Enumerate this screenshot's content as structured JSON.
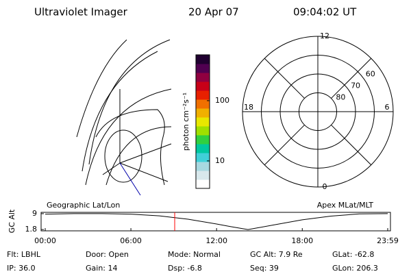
{
  "header": {
    "title": "Ultraviolet Imager",
    "date": "20 Apr 07",
    "time": "09:04:02 UT"
  },
  "chart_data": [
    {
      "type": "colorbar",
      "label": "photon cm⁻²s⁻¹",
      "log_scale": true,
      "ylim": [
        3.5,
        577
      ],
      "yticks": [
        10,
        100
      ],
      "colors": [
        "#ffffff",
        "#d8e8ec",
        "#a8d8e0",
        "#40d0d8",
        "#00c8a0",
        "#30d040",
        "#a0e000",
        "#e8e800",
        "#f0b000",
        "#f07000",
        "#e82000",
        "#c80018",
        "#900040",
        "#500050",
        "#200030"
      ]
    },
    {
      "type": "polar",
      "rlim": [
        50,
        90
      ],
      "rticks": [
        60,
        70,
        80
      ],
      "thetaticks": [
        0,
        6,
        12,
        18
      ]
    },
    {
      "type": "line",
      "ylabel": "GC Alt",
      "left_label": "Geographic Lat/Lon",
      "right_label": "Apex MLat/MLT",
      "xlim": [
        0,
        23.983
      ],
      "ylim": [
        1.2,
        9.6
      ],
      "yticks": [
        1.8,
        9.0
      ],
      "xticks": [
        {
          "value": 0,
          "label": "00:00"
        },
        {
          "value": 6,
          "label": "06:00"
        },
        {
          "value": 12,
          "label": "12:00"
        },
        {
          "value": 18,
          "label": "18:00"
        },
        {
          "value": 23.983,
          "label": "23:59"
        }
      ],
      "x": [
        0,
        2,
        4,
        6,
        8,
        10,
        12,
        13,
        14.2,
        15,
        16,
        18,
        20,
        22,
        23.983
      ],
      "series": [
        {
          "color": "#000000",
          "values": [
            8.8,
            9.0,
            9.0,
            8.8,
            8.0,
            6.5,
            4.3,
            3.1,
            1.8,
            2.7,
            3.9,
            6.2,
            7.9,
            8.9,
            9.0
          ]
        }
      ],
      "current_time": 9.067,
      "current_color": "#ff0000"
    }
  ],
  "info": {
    "rows": [
      [
        "Flt: LBHL",
        "Door: Open",
        "Mode: Normal",
        "GC Alt: 7.9 Re",
        "GLat: -62.8"
      ],
      [
        "IP: 36.0",
        "Gain: 14",
        "Dsp: -6.8",
        "Seq: 39",
        "GLon: 206.3"
      ]
    ]
  }
}
